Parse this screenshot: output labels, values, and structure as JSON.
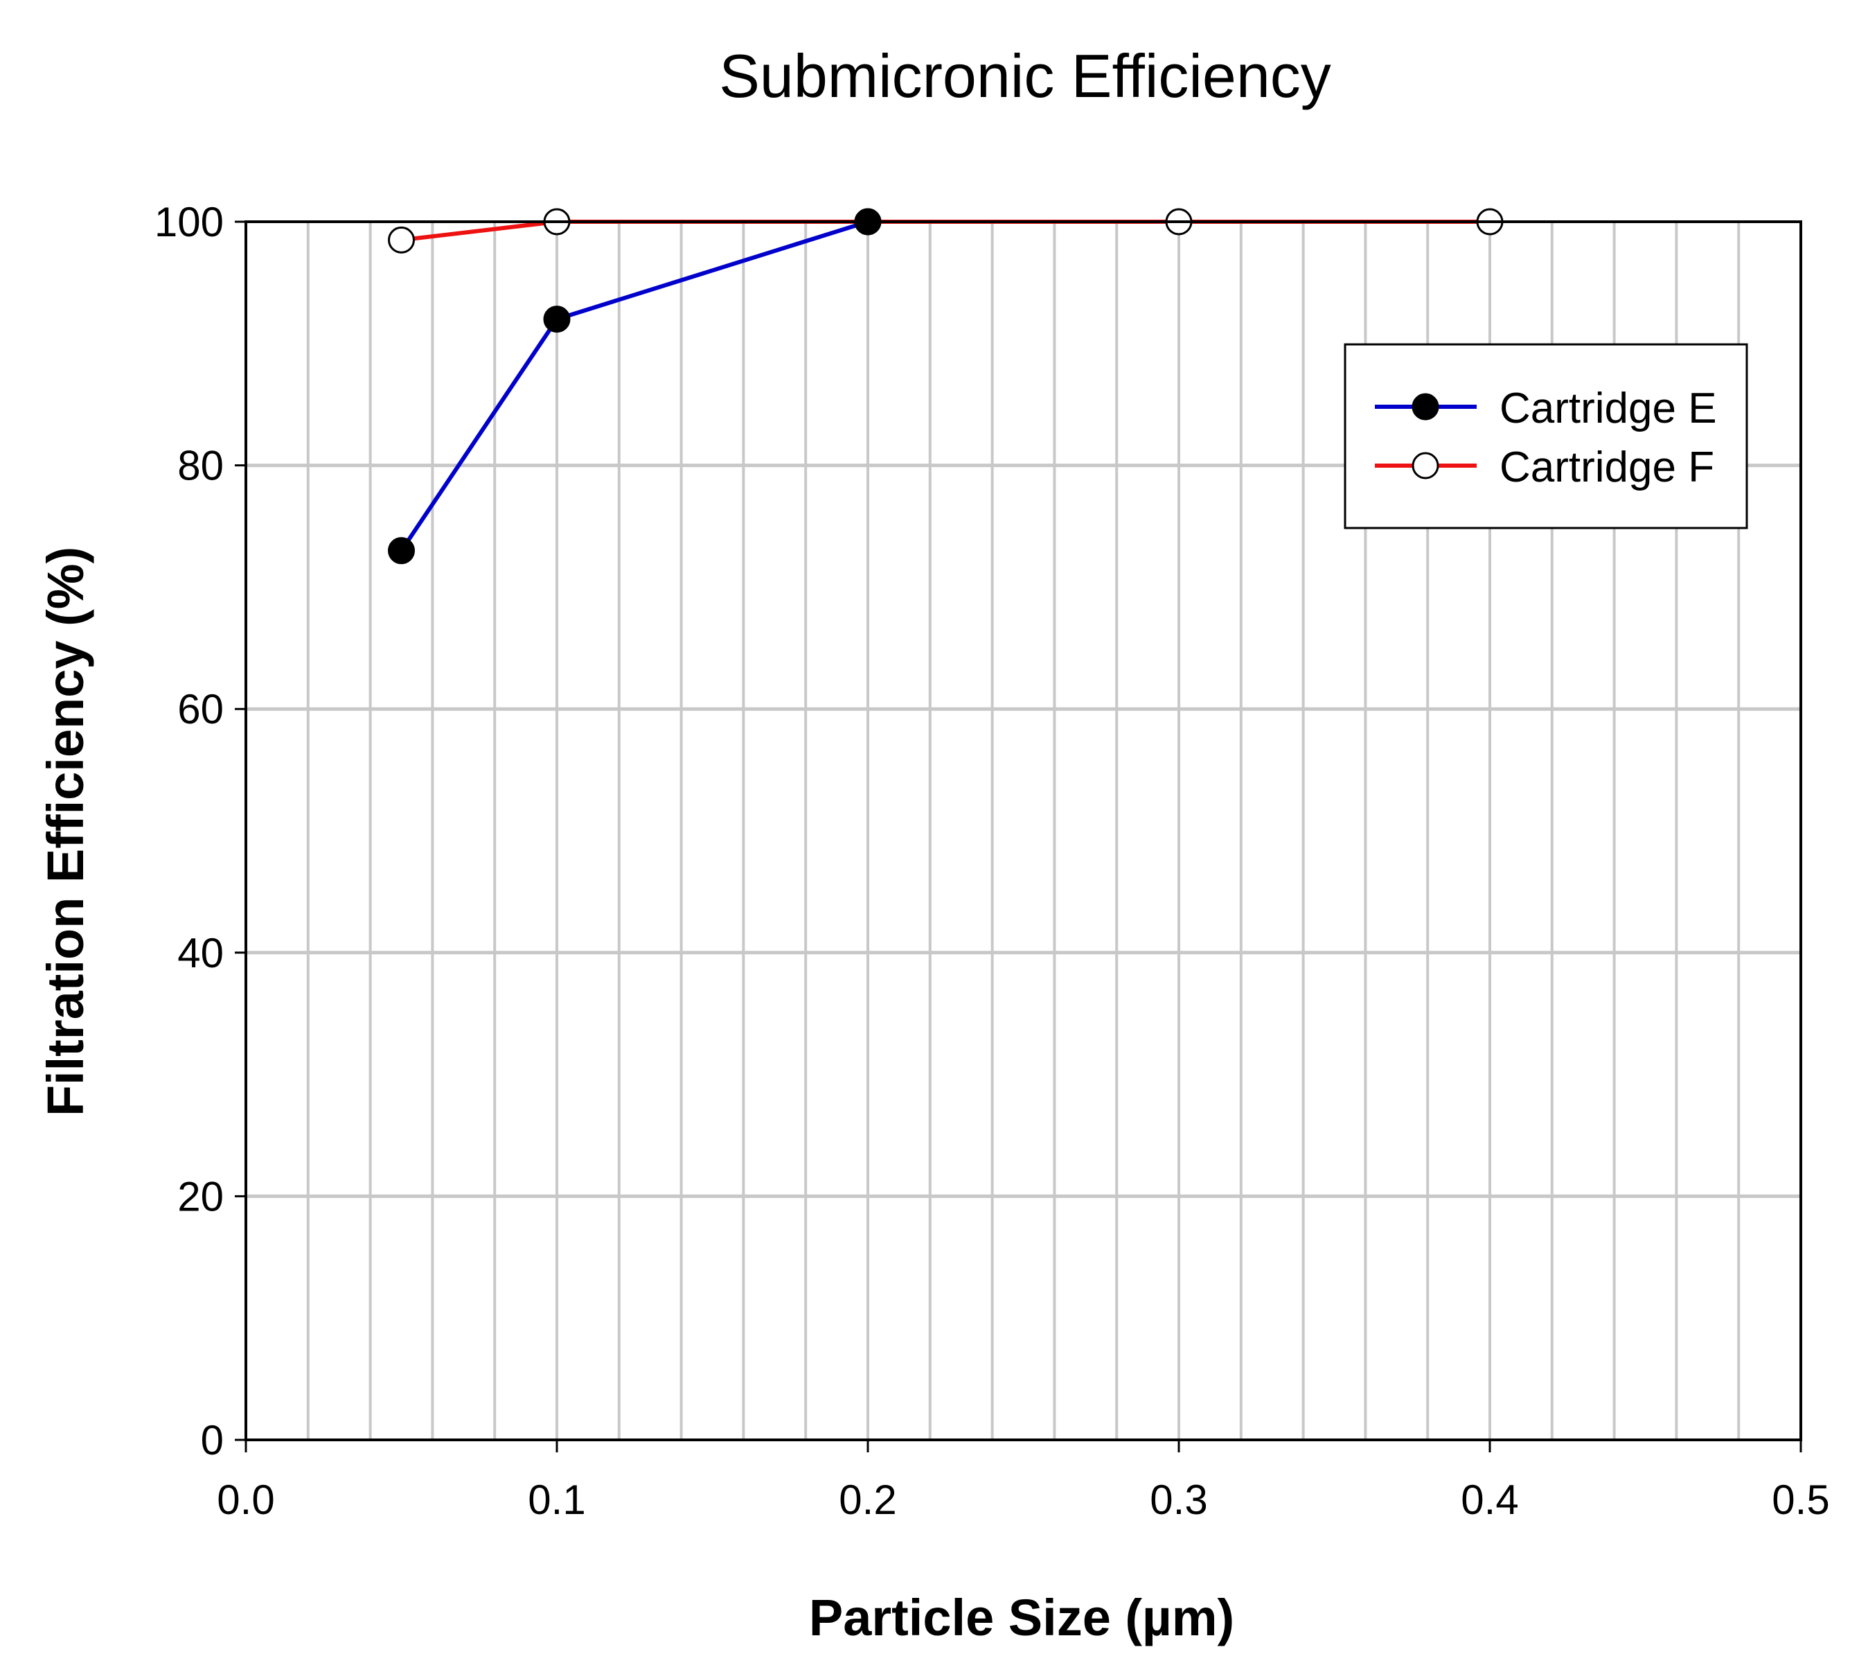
{
  "chart_data": {
    "type": "line",
    "title": "Submicronic Efficiency",
    "xlabel": "Particle Size (µm)",
    "ylabel": "Filtration Efficiency (%)",
    "xlim": [
      0.0,
      0.5
    ],
    "ylim": [
      0,
      100
    ],
    "x_ticks": [
      0.0,
      0.1,
      0.2,
      0.3,
      0.4,
      0.5
    ],
    "x_tick_labels": [
      "0.0",
      "0.1",
      "0.2",
      "0.3",
      "0.4",
      "0.5"
    ],
    "y_ticks": [
      0,
      20,
      40,
      60,
      80,
      100
    ],
    "y_tick_labels": [
      "0",
      "20",
      "40",
      "60",
      "80",
      "100"
    ],
    "x_minor_step": 0.02,
    "grid": true,
    "legend_position": "top-right",
    "series": [
      {
        "name": "Cartridge E",
        "color": "#0000cc",
        "marker": "filled-circle",
        "x": [
          0.05,
          0.1,
          0.2
        ],
        "y": [
          73,
          92,
          100
        ]
      },
      {
        "name": "Cartridge F",
        "color": "#ee1111",
        "marker": "open-circle",
        "x": [
          0.05,
          0.1,
          0.2,
          0.3,
          0.4
        ],
        "y": [
          98.5,
          100,
          100,
          100,
          100
        ]
      }
    ]
  }
}
